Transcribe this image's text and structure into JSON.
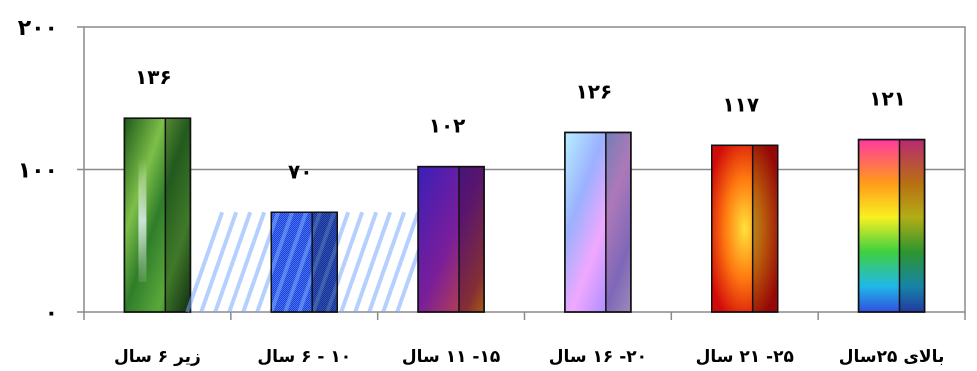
{
  "chart_data": {
    "type": "bar",
    "categories": [
      "زیر ۶ سال",
      "۱۰ - ۶ سال",
      "۱۵- ۱۱ سال",
      "۲۰- ۱۶ سال",
      "۲۵- ۲۱ سال",
      "بالای ۲۵سال"
    ],
    "values": [
      136,
      70,
      102,
      126,
      117,
      121
    ],
    "value_labels": [
      "۱۳۶",
      "۷۰",
      "۱۰۲",
      "۱۲۶",
      "۱۱۷",
      "۱۲۱"
    ],
    "y_ticks": [
      0,
      100,
      200
    ],
    "y_tick_labels": [
      "۰",
      "۱۰۰",
      "۲۰۰"
    ],
    "ylim": [
      0,
      200
    ],
    "grid": true,
    "legend": "none",
    "title": "",
    "xlabel": "",
    "ylabel": "",
    "bar_fills": [
      "forest-waterfall photo texture",
      "blue diagonal stripes",
      "purple-to-orange gradient",
      "pastel rainbow gradient",
      "red-yellow radial gradient",
      "rainbow spectrum gradient"
    ]
  }
}
